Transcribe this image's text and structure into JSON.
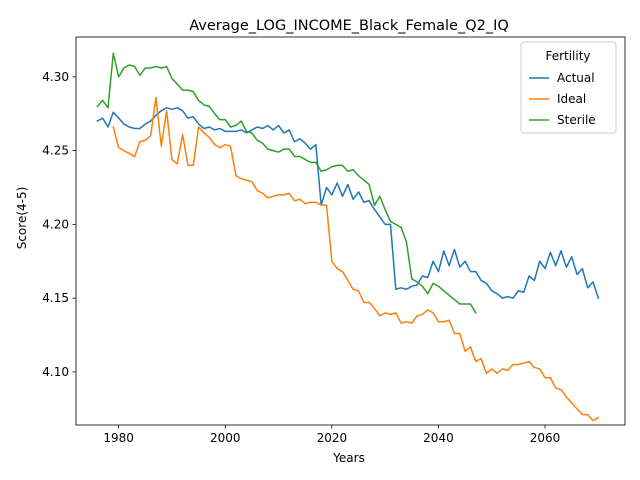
{
  "chart_data": {
    "type": "line",
    "title": "Average_LOG_INCOME_Black_Female_Q2_IQ",
    "xlabel": "Years",
    "ylabel": "Score(4-5)",
    "xlim": [
      1972,
      2075
    ],
    "ylim": [
      4.064,
      4.327
    ],
    "xticks": [
      1980,
      2000,
      2020,
      2040,
      2060
    ],
    "yticks": [
      4.1,
      4.15,
      4.2,
      4.25,
      4.3
    ],
    "ytick_labels": [
      "4.10",
      "4.15",
      "4.20",
      "4.25",
      "4.30"
    ],
    "grid": false,
    "legend": {
      "title": "Fertility",
      "placement": "top-right"
    },
    "series": [
      {
        "name": "Actual",
        "color": "#1f77b4",
        "x": [
          1976,
          1977,
          1978,
          1979,
          1980,
          1981,
          1982,
          1983,
          1984,
          1985,
          1986,
          1987,
          1988,
          1989,
          1990,
          1991,
          1992,
          1993,
          1994,
          1995,
          1996,
          1997,
          1998,
          1999,
          2000,
          2001,
          2002,
          2003,
          2004,
          2005,
          2006,
          2007,
          2008,
          2009,
          2010,
          2011,
          2012,
          2013,
          2014,
          2015,
          2016,
          2017,
          2018,
          2019,
          2020,
          2021,
          2022,
          2023,
          2024,
          2025,
          2026,
          2027,
          2028,
          2029,
          2030,
          2031,
          2032,
          2033,
          2034,
          2035,
          2036,
          2037,
          2038,
          2039,
          2040,
          2041,
          2042,
          2043,
          2044,
          2045,
          2046,
          2047,
          2048,
          2049,
          2050,
          2051,
          2052,
          2053,
          2054,
          2055,
          2056,
          2057,
          2058,
          2059,
          2060,
          2061,
          2062,
          2063,
          2064,
          2065,
          2066,
          2067,
          2068,
          2069,
          2070
        ],
        "y": [
          4.27,
          4.272,
          4.266,
          4.276,
          4.272,
          4.268,
          4.266,
          4.265,
          4.265,
          4.268,
          4.27,
          4.274,
          4.277,
          4.279,
          4.278,
          4.279,
          4.277,
          4.272,
          4.273,
          4.268,
          4.265,
          4.266,
          4.264,
          4.265,
          4.263,
          4.263,
          4.263,
          4.264,
          4.262,
          4.264,
          4.266,
          4.265,
          4.267,
          4.264,
          4.267,
          4.262,
          4.264,
          4.256,
          4.258,
          4.255,
          4.251,
          4.254,
          4.213,
          4.225,
          4.22,
          4.228,
          4.219,
          4.227,
          4.217,
          4.222,
          4.215,
          4.216,
          4.21,
          4.205,
          4.2,
          4.2,
          4.156,
          4.157,
          4.156,
          4.158,
          4.159,
          4.165,
          4.164,
          4.175,
          4.168,
          4.182,
          4.172,
          4.183,
          4.171,
          4.175,
          4.168,
          4.168,
          4.162,
          4.16,
          4.155,
          4.153,
          4.15,
          4.151,
          4.15,
          4.155,
          4.154,
          4.165,
          4.162,
          4.175,
          4.17,
          4.181,
          4.172,
          4.182,
          4.171,
          4.178,
          4.166,
          4.17,
          4.157,
          4.161,
          4.15
        ]
      },
      {
        "name": "Ideal",
        "color": "#ff7f0e",
        "x": [
          1979,
          1980,
          1981,
          1982,
          1983,
          1984,
          1985,
          1986,
          1987,
          1988,
          1989,
          1990,
          1991,
          1992,
          1993,
          1994,
          1995,
          1996,
          1997,
          1998,
          1999,
          2000,
          2001,
          2002,
          2003,
          2004,
          2005,
          2006,
          2007,
          2008,
          2009,
          2010,
          2011,
          2012,
          2013,
          2014,
          2015,
          2016,
          2017,
          2018,
          2019,
          2020,
          2021,
          2022,
          2023,
          2024,
          2025,
          2026,
          2027,
          2028,
          2029,
          2030,
          2031,
          2032,
          2033,
          2034,
          2035,
          2036,
          2037,
          2038,
          2039,
          2040,
          2041,
          2042,
          2043,
          2044,
          2045,
          2046,
          2047,
          2048,
          2049,
          2050,
          2051,
          2052,
          2053,
          2054,
          2055,
          2056,
          2057,
          2058,
          2059,
          2060,
          2061,
          2062,
          2063,
          2064,
          2065,
          2066,
          2067,
          2068,
          2069,
          2070
        ],
        "y": [
          4.266,
          4.252,
          4.25,
          4.248,
          4.246,
          4.256,
          4.257,
          4.26,
          4.286,
          4.253,
          4.277,
          4.244,
          4.241,
          4.261,
          4.24,
          4.24,
          4.266,
          4.262,
          4.259,
          4.254,
          4.252,
          4.254,
          4.253,
          4.233,
          4.231,
          4.23,
          4.229,
          4.223,
          4.221,
          4.218,
          4.219,
          4.22,
          4.22,
          4.221,
          4.216,
          4.217,
          4.214,
          4.215,
          4.215,
          4.213,
          4.213,
          4.175,
          4.17,
          4.168,
          4.162,
          4.156,
          4.155,
          4.147,
          4.147,
          4.143,
          4.138,
          4.14,
          4.139,
          4.14,
          4.133,
          4.134,
          4.133,
          4.138,
          4.139,
          4.142,
          4.14,
          4.134,
          4.134,
          4.135,
          4.126,
          4.126,
          4.114,
          4.117,
          4.107,
          4.109,
          4.099,
          4.102,
          4.099,
          4.102,
          4.101,
          4.105,
          4.105,
          4.106,
          4.107,
          4.103,
          4.102,
          4.096,
          4.096,
          4.089,
          4.088,
          4.083,
          4.079,
          4.075,
          4.071,
          4.071,
          4.067,
          4.069
        ]
      },
      {
        "name": "Sterile",
        "color": "#2ca02c",
        "x": [
          1976,
          1977,
          1978,
          1979,
          1980,
          1981,
          1982,
          1983,
          1984,
          1985,
          1986,
          1987,
          1988,
          1989,
          1990,
          1991,
          1992,
          1993,
          1994,
          1995,
          1996,
          1997,
          1998,
          1999,
          2000,
          2001,
          2002,
          2003,
          2004,
          2005,
          2006,
          2007,
          2008,
          2009,
          2010,
          2011,
          2012,
          2013,
          2014,
          2015,
          2016,
          2017,
          2018,
          2019,
          2020,
          2021,
          2022,
          2023,
          2024,
          2025,
          2026,
          2027,
          2028,
          2029,
          2030,
          2031,
          2032,
          2033,
          2034,
          2035,
          2036,
          2037,
          2038,
          2039,
          2040,
          2041,
          2042,
          2043,
          2044,
          2045,
          2046,
          2047
        ],
        "y": [
          4.28,
          4.284,
          4.279,
          4.316,
          4.3,
          4.306,
          4.308,
          4.307,
          4.301,
          4.306,
          4.306,
          4.307,
          4.306,
          4.307,
          4.299,
          4.295,
          4.291,
          4.291,
          4.29,
          4.284,
          4.281,
          4.28,
          4.275,
          4.271,
          4.271,
          4.266,
          4.267,
          4.27,
          4.263,
          4.262,
          4.257,
          4.255,
          4.251,
          4.25,
          4.249,
          4.251,
          4.251,
          4.246,
          4.246,
          4.244,
          4.242,
          4.242,
          4.236,
          4.237,
          4.239,
          4.24,
          4.24,
          4.236,
          4.237,
          4.233,
          4.23,
          4.227,
          4.213,
          4.219,
          4.21,
          4.202,
          4.2,
          4.198,
          4.188,
          4.163,
          4.161,
          4.158,
          4.153,
          4.16,
          4.158,
          4.155,
          4.152,
          4.149,
          4.146,
          4.146,
          4.146,
          4.14
        ]
      }
    ]
  }
}
